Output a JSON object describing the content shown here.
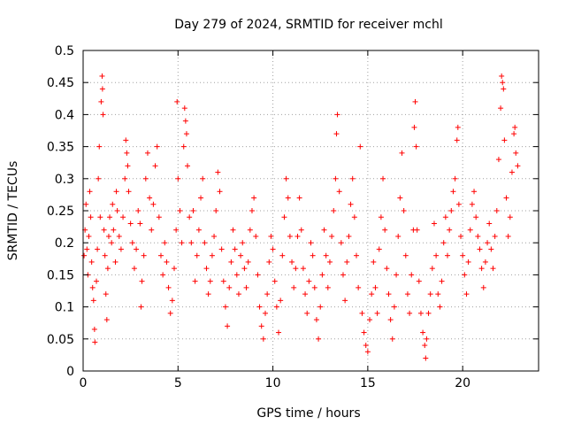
{
  "chart_data": {
    "type": "scatter",
    "title": "Day 279 of 2024, SRMTID for receiver mchl",
    "xlabel": "GPS time / hours",
    "ylabel": "SRMTID / TECUs",
    "xlim": [
      0,
      24
    ],
    "ylim": [
      0,
      0.5
    ],
    "x_ticks": [
      0,
      5,
      10,
      15,
      20
    ],
    "x_tick_labels": [
      "0",
      "5",
      "10",
      "15",
      "20"
    ],
    "y_ticks": [
      0,
      0.05,
      0.1,
      0.15,
      0.2,
      0.25,
      0.3,
      0.35,
      0.4,
      0.45,
      0.5
    ],
    "y_tick_labels": [
      "0",
      "0.05",
      "0.1",
      "0.15",
      "0.2",
      "0.25",
      "0.3",
      "0.35",
      "0.4",
      "0.45",
      "0.5"
    ],
    "grid": true,
    "marker": "+",
    "data_extent_hours": [
      0,
      23
    ],
    "series": [
      {
        "name": "SRMTID",
        "color": "#ff0000",
        "points": [
          [
            0.05,
            0.18
          ],
          [
            0.1,
            0.22
          ],
          [
            0.15,
            0.26
          ],
          [
            0.2,
            0.19
          ],
          [
            0.25,
            0.15
          ],
          [
            0.3,
            0.21
          ],
          [
            0.35,
            0.28
          ],
          [
            0.4,
            0.24
          ],
          [
            0.45,
            0.17
          ],
          [
            0.5,
            0.13
          ],
          [
            0.55,
            0.11
          ],
          [
            0.6,
            0.065
          ],
          [
            0.62,
            0.045
          ],
          [
            0.7,
            0.14
          ],
          [
            0.75,
            0.19
          ],
          [
            0.8,
            0.3
          ],
          [
            0.85,
            0.35
          ],
          [
            0.9,
            0.24
          ],
          [
            0.95,
            0.42
          ],
          [
            1.0,
            0.46
          ],
          [
            1.02,
            0.44
          ],
          [
            1.05,
            0.4
          ],
          [
            1.1,
            0.22
          ],
          [
            1.15,
            0.18
          ],
          [
            1.2,
            0.12
          ],
          [
            1.25,
            0.08
          ],
          [
            1.3,
            0.16
          ],
          [
            1.35,
            0.21
          ],
          [
            1.4,
            0.24
          ],
          [
            1.5,
            0.2
          ],
          [
            1.55,
            0.26
          ],
          [
            1.6,
            0.22
          ],
          [
            1.7,
            0.17
          ],
          [
            1.75,
            0.28
          ],
          [
            1.8,
            0.25
          ],
          [
            1.9,
            0.21
          ],
          [
            2.0,
            0.19
          ],
          [
            2.1,
            0.24
          ],
          [
            2.2,
            0.3
          ],
          [
            2.25,
            0.36
          ],
          [
            2.3,
            0.34
          ],
          [
            2.35,
            0.32
          ],
          [
            2.4,
            0.28
          ],
          [
            2.5,
            0.23
          ],
          [
            2.6,
            0.2
          ],
          [
            2.7,
            0.16
          ],
          [
            2.8,
            0.19
          ],
          [
            2.9,
            0.25
          ],
          [
            3.0,
            0.23
          ],
          [
            3.05,
            0.1
          ],
          [
            3.1,
            0.14
          ],
          [
            3.2,
            0.18
          ],
          [
            3.3,
            0.3
          ],
          [
            3.4,
            0.34
          ],
          [
            3.5,
            0.27
          ],
          [
            3.6,
            0.22
          ],
          [
            3.7,
            0.26
          ],
          [
            3.8,
            0.32
          ],
          [
            3.9,
            0.35
          ],
          [
            4.0,
            0.24
          ],
          [
            4.1,
            0.18
          ],
          [
            4.2,
            0.15
          ],
          [
            4.3,
            0.2
          ],
          [
            4.4,
            0.17
          ],
          [
            4.5,
            0.13
          ],
          [
            4.6,
            0.09
          ],
          [
            4.7,
            0.11
          ],
          [
            4.8,
            0.16
          ],
          [
            4.9,
            0.22
          ],
          [
            4.95,
            0.42
          ],
          [
            5.0,
            0.3
          ],
          [
            5.1,
            0.25
          ],
          [
            5.2,
            0.2
          ],
          [
            5.3,
            0.35
          ],
          [
            5.35,
            0.41
          ],
          [
            5.4,
            0.39
          ],
          [
            5.45,
            0.37
          ],
          [
            5.5,
            0.32
          ],
          [
            5.6,
            0.24
          ],
          [
            5.7,
            0.2
          ],
          [
            5.8,
            0.25
          ],
          [
            5.9,
            0.14
          ],
          [
            6.0,
            0.18
          ],
          [
            6.1,
            0.22
          ],
          [
            6.2,
            0.27
          ],
          [
            6.3,
            0.3
          ],
          [
            6.4,
            0.2
          ],
          [
            6.5,
            0.16
          ],
          [
            6.6,
            0.12
          ],
          [
            6.7,
            0.14
          ],
          [
            6.8,
            0.18
          ],
          [
            6.9,
            0.21
          ],
          [
            7.0,
            0.25
          ],
          [
            7.1,
            0.31
          ],
          [
            7.2,
            0.28
          ],
          [
            7.3,
            0.19
          ],
          [
            7.4,
            0.14
          ],
          [
            7.5,
            0.1
          ],
          [
            7.6,
            0.07
          ],
          [
            7.7,
            0.13
          ],
          [
            7.8,
            0.17
          ],
          [
            7.9,
            0.22
          ],
          [
            8.0,
            0.19
          ],
          [
            8.1,
            0.15
          ],
          [
            8.2,
            0.12
          ],
          [
            8.3,
            0.18
          ],
          [
            8.4,
            0.2
          ],
          [
            8.5,
            0.16
          ],
          [
            8.6,
            0.13
          ],
          [
            8.7,
            0.17
          ],
          [
            8.8,
            0.22
          ],
          [
            8.9,
            0.25
          ],
          [
            9.0,
            0.27
          ],
          [
            9.1,
            0.21
          ],
          [
            9.2,
            0.15
          ],
          [
            9.3,
            0.1
          ],
          [
            9.4,
            0.07
          ],
          [
            9.5,
            0.05
          ],
          [
            9.6,
            0.09
          ],
          [
            9.7,
            0.12
          ],
          [
            9.8,
            0.17
          ],
          [
            9.9,
            0.21
          ],
          [
            10.0,
            0.19
          ],
          [
            10.1,
            0.14
          ],
          [
            10.2,
            0.1
          ],
          [
            10.3,
            0.06
          ],
          [
            10.4,
            0.11
          ],
          [
            10.5,
            0.18
          ],
          [
            10.6,
            0.24
          ],
          [
            10.7,
            0.3
          ],
          [
            10.8,
            0.27
          ],
          [
            10.9,
            0.21
          ],
          [
            11.0,
            0.17
          ],
          [
            11.1,
            0.13
          ],
          [
            11.2,
            0.16
          ],
          [
            11.3,
            0.21
          ],
          [
            11.4,
            0.27
          ],
          [
            11.5,
            0.22
          ],
          [
            11.6,
            0.16
          ],
          [
            11.7,
            0.12
          ],
          [
            11.8,
            0.09
          ],
          [
            11.9,
            0.14
          ],
          [
            12.0,
            0.2
          ],
          [
            12.1,
            0.18
          ],
          [
            12.2,
            0.13
          ],
          [
            12.3,
            0.08
          ],
          [
            12.4,
            0.05
          ],
          [
            12.5,
            0.1
          ],
          [
            12.6,
            0.15
          ],
          [
            12.7,
            0.22
          ],
          [
            12.8,
            0.18
          ],
          [
            12.9,
            0.13
          ],
          [
            13.0,
            0.17
          ],
          [
            13.1,
            0.21
          ],
          [
            13.2,
            0.25
          ],
          [
            13.3,
            0.3
          ],
          [
            13.35,
            0.37
          ],
          [
            13.4,
            0.4
          ],
          [
            13.5,
            0.28
          ],
          [
            13.6,
            0.2
          ],
          [
            13.7,
            0.15
          ],
          [
            13.8,
            0.11
          ],
          [
            13.9,
            0.17
          ],
          [
            14.0,
            0.21
          ],
          [
            14.1,
            0.26
          ],
          [
            14.2,
            0.3
          ],
          [
            14.3,
            0.24
          ],
          [
            14.4,
            0.18
          ],
          [
            14.5,
            0.13
          ],
          [
            14.6,
            0.35
          ],
          [
            14.7,
            0.09
          ],
          [
            14.8,
            0.06
          ],
          [
            14.9,
            0.04
          ],
          [
            15.0,
            0.03
          ],
          [
            15.1,
            0.08
          ],
          [
            15.2,
            0.12
          ],
          [
            15.3,
            0.17
          ],
          [
            15.4,
            0.13
          ],
          [
            15.5,
            0.09
          ],
          [
            15.6,
            0.19
          ],
          [
            15.7,
            0.24
          ],
          [
            15.8,
            0.3
          ],
          [
            15.9,
            0.22
          ],
          [
            16.0,
            0.16
          ],
          [
            16.1,
            0.12
          ],
          [
            16.2,
            0.08
          ],
          [
            16.3,
            0.05
          ],
          [
            16.4,
            0.1
          ],
          [
            16.5,
            0.15
          ],
          [
            16.6,
            0.21
          ],
          [
            16.7,
            0.27
          ],
          [
            16.8,
            0.34
          ],
          [
            16.9,
            0.25
          ],
          [
            17.0,
            0.18
          ],
          [
            17.1,
            0.12
          ],
          [
            17.2,
            0.09
          ],
          [
            17.3,
            0.15
          ],
          [
            17.4,
            0.22
          ],
          [
            17.45,
            0.38
          ],
          [
            17.5,
            0.42
          ],
          [
            17.55,
            0.35
          ],
          [
            17.6,
            0.22
          ],
          [
            17.7,
            0.14
          ],
          [
            17.8,
            0.09
          ],
          [
            17.9,
            0.06
          ],
          [
            18.0,
            0.04
          ],
          [
            18.05,
            0.02
          ],
          [
            18.1,
            0.05
          ],
          [
            18.2,
            0.09
          ],
          [
            18.3,
            0.12
          ],
          [
            18.4,
            0.16
          ],
          [
            18.5,
            0.23
          ],
          [
            18.6,
            0.18
          ],
          [
            18.7,
            0.12
          ],
          [
            18.8,
            0.1
          ],
          [
            18.9,
            0.14
          ],
          [
            19.0,
            0.2
          ],
          [
            19.1,
            0.24
          ],
          [
            19.2,
            0.18
          ],
          [
            19.3,
            0.22
          ],
          [
            19.4,
            0.25
          ],
          [
            19.5,
            0.28
          ],
          [
            19.6,
            0.3
          ],
          [
            19.7,
            0.36
          ],
          [
            19.75,
            0.38
          ],
          [
            19.8,
            0.26
          ],
          [
            19.9,
            0.21
          ],
          [
            20.0,
            0.18
          ],
          [
            20.1,
            0.15
          ],
          [
            20.2,
            0.12
          ],
          [
            20.3,
            0.17
          ],
          [
            20.4,
            0.22
          ],
          [
            20.5,
            0.26
          ],
          [
            20.6,
            0.28
          ],
          [
            20.7,
            0.24
          ],
          [
            20.8,
            0.21
          ],
          [
            20.9,
            0.19
          ],
          [
            21.0,
            0.16
          ],
          [
            21.1,
            0.13
          ],
          [
            21.2,
            0.17
          ],
          [
            21.3,
            0.2
          ],
          [
            21.4,
            0.23
          ],
          [
            21.5,
            0.19
          ],
          [
            21.6,
            0.16
          ],
          [
            21.7,
            0.21
          ],
          [
            21.8,
            0.25
          ],
          [
            21.9,
            0.33
          ],
          [
            22.0,
            0.41
          ],
          [
            22.05,
            0.46
          ],
          [
            22.1,
            0.45
          ],
          [
            22.15,
            0.44
          ],
          [
            22.2,
            0.36
          ],
          [
            22.3,
            0.27
          ],
          [
            22.4,
            0.21
          ],
          [
            22.5,
            0.24
          ],
          [
            22.6,
            0.31
          ],
          [
            22.7,
            0.37
          ],
          [
            22.75,
            0.38
          ],
          [
            22.8,
            0.34
          ],
          [
            22.9,
            0.32
          ]
        ]
      }
    ]
  }
}
